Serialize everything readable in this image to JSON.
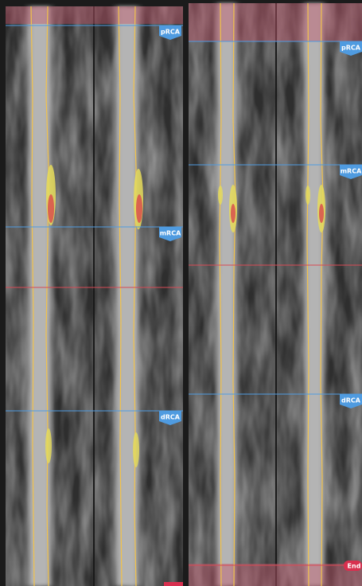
{
  "left_panel": {
    "markers": [
      {
        "label": "pRCA"
      },
      {
        "label": "mRCA"
      },
      {
        "label": "dRCA"
      }
    ]
  },
  "right_panel": {
    "markers": [
      {
        "label": "pRCA"
      },
      {
        "label": "mRCA"
      },
      {
        "label": "dRCA"
      },
      {
        "label": "End"
      }
    ]
  }
}
